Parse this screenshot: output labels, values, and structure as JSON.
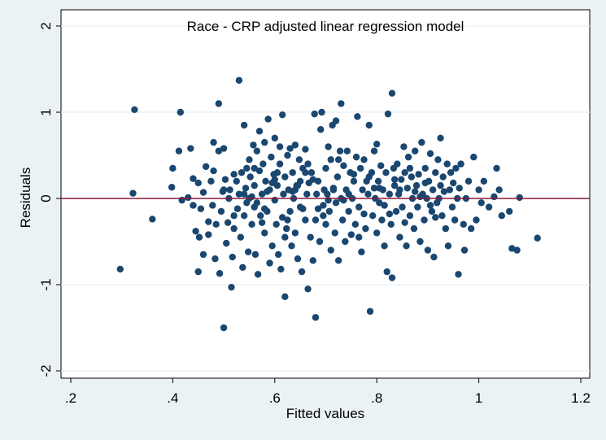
{
  "chart_data": {
    "type": "scatter",
    "title": "Race - CRP adjusted linear regression model",
    "xlabel": "Fitted values",
    "ylabel": "Residuals",
    "xlim": [
      0.2,
      1.2
    ],
    "ylim": [
      -2,
      2
    ],
    "xticks": [
      0.2,
      0.4,
      0.6,
      0.8,
      1.0,
      1.2
    ],
    "xtick_labels": [
      ".2",
      ".4",
      ".6",
      ".8",
      "1",
      "1.2"
    ],
    "yticks": [
      -2,
      -1,
      0,
      1,
      2
    ],
    "ytick_labels": [
      "-2",
      "-1",
      "0",
      "1",
      "2"
    ],
    "grid": true,
    "reference_line": {
      "y": 0,
      "color": "#8b1a3a"
    },
    "marker_color": "#1a476f",
    "points": [
      [
        0.297,
        -0.82
      ],
      [
        0.322,
        0.06
      ],
      [
        0.325,
        1.03
      ],
      [
        0.36,
        -0.24
      ],
      [
        0.4,
        0.35
      ],
      [
        0.398,
        0.13
      ],
      [
        0.412,
        0.55
      ],
      [
        0.415,
        1.0
      ],
      [
        0.418,
        -0.02
      ],
      [
        0.43,
        0.01
      ],
      [
        0.435,
        0.58
      ],
      [
        0.44,
        -0.08
      ],
      [
        0.44,
        0.23
      ],
      [
        0.445,
        -0.38
      ],
      [
        0.45,
        -0.85
      ],
      [
        0.45,
        0.18
      ],
      [
        0.452,
        -0.45
      ],
      [
        0.455,
        -0.12
      ],
      [
        0.46,
        -0.65
      ],
      [
        0.46,
        0.07
      ],
      [
        0.465,
        0.37
      ],
      [
        0.47,
        -0.42
      ],
      [
        0.47,
        -0.27
      ],
      [
        0.475,
        0.2
      ],
      [
        0.478,
        -0.08
      ],
      [
        0.48,
        0.32
      ],
      [
        0.48,
        0.65
      ],
      [
        0.483,
        -0.7
      ],
      [
        0.485,
        -0.3
      ],
      [
        0.49,
        1.1
      ],
      [
        0.49,
        0.55
      ],
      [
        0.492,
        -0.87
      ],
      [
        0.495,
        -0.15
      ],
      [
        0.498,
        0.08
      ],
      [
        0.5,
        -1.5
      ],
      [
        0.5,
        0.58
      ],
      [
        0.503,
        0.22
      ],
      [
        0.505,
        -0.52
      ],
      [
        0.508,
        -0.28
      ],
      [
        0.51,
        0.0
      ],
      [
        0.512,
        0.1
      ],
      [
        0.515,
        -1.03
      ],
      [
        0.517,
        -0.68
      ],
      [
        0.52,
        0.28
      ],
      [
        0.52,
        -0.35
      ],
      [
        0.525,
        0.2
      ],
      [
        0.527,
        -0.12
      ],
      [
        0.53,
        1.37
      ],
      [
        0.53,
        0.05
      ],
      [
        0.533,
        -0.45
      ],
      [
        0.535,
        0.3
      ],
      [
        0.537,
        -0.8
      ],
      [
        0.54,
        0.85
      ],
      [
        0.54,
        -0.2
      ],
      [
        0.543,
        0.12
      ],
      [
        0.545,
        -0.05
      ],
      [
        0.548,
        -0.62
      ],
      [
        0.55,
        0.45
      ],
      [
        0.55,
        0.0
      ],
      [
        0.552,
        0.25
      ],
      [
        0.555,
        -0.3
      ],
      [
        0.558,
        0.62
      ],
      [
        0.56,
        -0.1
      ],
      [
        0.56,
        0.15
      ],
      [
        0.562,
        -0.65
      ],
      [
        0.565,
        0.55
      ],
      [
        0.567,
        -0.88
      ],
      [
        0.57,
        0.78
      ],
      [
        0.57,
        0.32
      ],
      [
        0.572,
        -0.2
      ],
      [
        0.575,
        0.05
      ],
      [
        0.577,
        0.4
      ],
      [
        0.58,
        -0.4
      ],
      [
        0.58,
        0.65
      ],
      [
        0.582,
        0.2
      ],
      [
        0.585,
        -0.15
      ],
      [
        0.587,
        0.92
      ],
      [
        0.59,
        0.1
      ],
      [
        0.59,
        -0.75
      ],
      [
        0.593,
        0.48
      ],
      [
        0.595,
        -0.55
      ],
      [
        0.598,
        0.28
      ],
      [
        0.6,
        -0.02
      ],
      [
        0.6,
        0.7
      ],
      [
        0.603,
        -0.3
      ],
      [
        0.605,
        0.15
      ],
      [
        0.607,
        -0.65
      ],
      [
        0.61,
        0.4
      ],
      [
        0.61,
        0.6
      ],
      [
        0.612,
        -0.82
      ],
      [
        0.615,
        0.97
      ],
      [
        0.617,
        0.05
      ],
      [
        0.62,
        -1.14
      ],
      [
        0.62,
        0.25
      ],
      [
        0.623,
        -0.35
      ],
      [
        0.625,
        0.5
      ],
      [
        0.627,
        0.1
      ],
      [
        0.63,
        -0.15
      ],
      [
        0.63,
        0.58
      ],
      [
        0.633,
        -0.55
      ],
      [
        0.635,
        0.3
      ],
      [
        0.637,
        0.0
      ],
      [
        0.64,
        0.62
      ],
      [
        0.64,
        -0.4
      ],
      [
        0.643,
        0.15
      ],
      [
        0.645,
        -0.7
      ],
      [
        0.648,
        0.45
      ],
      [
        0.65,
        -0.1
      ],
      [
        0.65,
        0.2
      ],
      [
        0.653,
        -0.85
      ],
      [
        0.655,
        0.35
      ],
      [
        0.66,
        -0.25
      ],
      [
        0.66,
        0.57
      ],
      [
        0.663,
        0.05
      ],
      [
        0.665,
        -1.05
      ],
      [
        0.667,
        0.18
      ],
      [
        0.67,
        -0.45
      ],
      [
        0.672,
        0.3
      ],
      [
        0.675,
        -0.72
      ],
      [
        0.678,
        0.98
      ],
      [
        0.68,
        -1.38
      ],
      [
        0.682,
        0.05
      ],
      [
        0.685,
        0.2
      ],
      [
        0.688,
        -0.5
      ],
      [
        0.69,
        0.8
      ],
      [
        0.692,
        1.0
      ],
      [
        0.695,
        -0.2
      ],
      [
        0.697,
        0.1
      ],
      [
        0.7,
        0.35
      ],
      [
        0.7,
        -0.3
      ],
      [
        0.703,
        0.05
      ],
      [
        0.705,
        0.6
      ],
      [
        0.707,
        -0.15
      ],
      [
        0.71,
        0.45
      ],
      [
        0.71,
        -0.6
      ],
      [
        0.713,
        0.85
      ],
      [
        0.715,
        0.1
      ],
      [
        0.718,
        -0.4
      ],
      [
        0.72,
        0.9
      ],
      [
        0.72,
        -0.05
      ],
      [
        0.723,
        0.25
      ],
      [
        0.725,
        -0.72
      ],
      [
        0.728,
        0.55
      ],
      [
        0.73,
        1.1
      ],
      [
        0.73,
        0.0
      ],
      [
        0.733,
        -0.25
      ],
      [
        0.735,
        0.38
      ],
      [
        0.738,
        -0.5
      ],
      [
        0.74,
        0.1
      ],
      [
        0.742,
        0.55
      ],
      [
        0.745,
        -0.15
      ],
      [
        0.748,
        0.3
      ],
      [
        0.75,
        -0.42
      ],
      [
        0.752,
        0.0
      ],
      [
        0.755,
        0.2
      ],
      [
        0.758,
        -0.3
      ],
      [
        0.76,
        0.48
      ],
      [
        0.762,
        0.95
      ],
      [
        0.765,
        -0.1
      ],
      [
        0.768,
        0.35
      ],
      [
        0.77,
        -0.62
      ],
      [
        0.772,
        0.1
      ],
      [
        0.775,
        0.45
      ],
      [
        0.778,
        -0.35
      ],
      [
        0.78,
        0.2
      ],
      [
        0.783,
        0.05
      ],
      [
        0.785,
        0.85
      ],
      [
        0.787,
        -1.31
      ],
      [
        0.79,
        0.3
      ],
      [
        0.792,
        -0.2
      ],
      [
        0.795,
        0.55
      ],
      [
        0.797,
        0.0
      ],
      [
        0.8,
        0.63
      ],
      [
        0.8,
        -0.4
      ],
      [
        0.803,
        0.2
      ],
      [
        0.805,
        -0.05
      ],
      [
        0.808,
        0.38
      ],
      [
        0.81,
        -0.25
      ],
      [
        0.812,
        0.1
      ],
      [
        0.815,
        -0.55
      ],
      [
        0.818,
        0.3
      ],
      [
        0.82,
        -0.85
      ],
      [
        0.822,
        0.98
      ],
      [
        0.825,
        0.05
      ],
      [
        0.828,
        -0.3
      ],
      [
        0.83,
        1.22
      ],
      [
        0.83,
        -0.92
      ],
      [
        0.833,
        0.35
      ],
      [
        0.835,
        0.15
      ],
      [
        0.838,
        -0.15
      ],
      [
        0.84,
        0.4
      ],
      [
        0.843,
        0.05
      ],
      [
        0.845,
        -0.45
      ],
      [
        0.848,
        0.22
      ],
      [
        0.85,
        -0.1
      ],
      [
        0.853,
        0.6
      ],
      [
        0.855,
        0.3
      ],
      [
        0.858,
        -0.55
      ],
      [
        0.86,
        0.12
      ],
      [
        0.862,
        0.48
      ],
      [
        0.865,
        -0.2
      ],
      [
        0.868,
        0.25
      ],
      [
        0.87,
        0.0
      ],
      [
        0.873,
        -0.35
      ],
      [
        0.875,
        0.55
      ],
      [
        0.878,
        0.15
      ],
      [
        0.88,
        -0.1
      ],
      [
        0.882,
        0.28
      ],
      [
        0.885,
        -0.5
      ],
      [
        0.888,
        0.65
      ],
      [
        0.89,
        0.05
      ],
      [
        0.893,
        -0.25
      ],
      [
        0.895,
        0.35
      ],
      [
        0.898,
        0.0
      ],
      [
        0.9,
        -0.6
      ],
      [
        0.902,
        0.2
      ],
      [
        0.905,
        0.52
      ],
      [
        0.908,
        -0.15
      ],
      [
        0.91,
        0.1
      ],
      [
        0.912,
        -0.68
      ],
      [
        0.915,
        0.3
      ],
      [
        0.918,
        -0.05
      ],
      [
        0.92,
        0.45
      ],
      [
        0.922,
        0.0
      ],
      [
        0.925,
        0.7
      ],
      [
        0.928,
        -0.2
      ],
      [
        0.93,
        0.25
      ],
      [
        0.932,
        0.08
      ],
      [
        0.935,
        -0.35
      ],
      [
        0.938,
        0.4
      ],
      [
        0.94,
        -0.55
      ],
      [
        0.943,
        0.1
      ],
      [
        0.945,
        0.3
      ],
      [
        0.948,
        -0.1
      ],
      [
        0.95,
        0.18
      ],
      [
        0.953,
        -0.25
      ],
      [
        0.955,
        0.35
      ],
      [
        0.958,
        0.0
      ],
      [
        0.96,
        -0.88
      ],
      [
        0.962,
        0.12
      ],
      [
        0.965,
        0.4
      ],
      [
        0.97,
        -0.3
      ],
      [
        0.972,
        -0.6
      ],
      [
        0.975,
        0.0
      ],
      [
        0.98,
        0.2
      ],
      [
        0.985,
        -0.35
      ],
      [
        0.99,
        0.48
      ],
      [
        0.995,
        -0.25
      ],
      [
        1.0,
        0.1
      ],
      [
        1.005,
        -0.05
      ],
      [
        1.01,
        0.2
      ],
      [
        1.02,
        -0.1
      ],
      [
        1.03,
        0.02
      ],
      [
        1.035,
        0.35
      ],
      [
        1.04,
        0.1
      ],
      [
        1.045,
        -0.2
      ],
      [
        1.06,
        -0.15
      ],
      [
        1.065,
        -0.58
      ],
      [
        1.075,
        -0.6
      ],
      [
        1.08,
        0.01
      ],
      [
        1.115,
        -0.46
      ],
      [
        0.555,
        0.02
      ],
      [
        0.575,
        -0.28
      ],
      [
        0.595,
        0.18
      ],
      [
        0.615,
        -0.22
      ],
      [
        0.635,
        0.08
      ],
      [
        0.655,
        -0.12
      ],
      [
        0.675,
        0.22
      ],
      [
        0.695,
        -0.08
      ],
      [
        0.715,
        0.12
      ],
      [
        0.735,
        -0.02
      ],
      [
        0.755,
        0.28
      ],
      [
        0.775,
        -0.18
      ],
      [
        0.795,
        0.12
      ],
      [
        0.815,
        -0.08
      ],
      [
        0.835,
        0.22
      ],
      [
        0.855,
        -0.28
      ],
      [
        0.875,
        0.08
      ],
      [
        0.895,
        0.18
      ],
      [
        0.915,
        -0.22
      ],
      [
        0.545,
        0.35
      ],
      [
        0.565,
        -0.05
      ],
      [
        0.585,
        0.08
      ],
      [
        0.605,
        0.3
      ],
      [
        0.625,
        -0.25
      ],
      [
        0.645,
        0.15
      ],
      [
        0.665,
        0.4
      ],
      [
        0.685,
        -0.12
      ],
      [
        0.705,
        -0.02
      ],
      [
        0.725,
        0.45
      ],
      [
        0.745,
        0.05
      ],
      [
        0.765,
        -0.45
      ],
      [
        0.785,
        0.25
      ],
      [
        0.805,
        0.12
      ],
      [
        0.825,
        -0.18
      ],
      [
        0.845,
        0.1
      ],
      [
        0.865,
        0.35
      ],
      [
        0.885,
        0.02
      ],
      [
        0.905,
        -0.08
      ],
      [
        0.925,
        0.15
      ],
      [
        0.5,
        0.1
      ],
      [
        0.52,
        -0.2
      ],
      [
        0.54,
        0.05
      ],
      [
        0.56,
        0.35
      ],
      [
        0.58,
        -0.12
      ],
      [
        0.6,
        0.22
      ],
      [
        0.62,
        -0.45
      ],
      [
        0.64,
        0.1
      ],
      [
        0.66,
        0.3
      ],
      [
        0.68,
        -0.25
      ]
    ]
  }
}
